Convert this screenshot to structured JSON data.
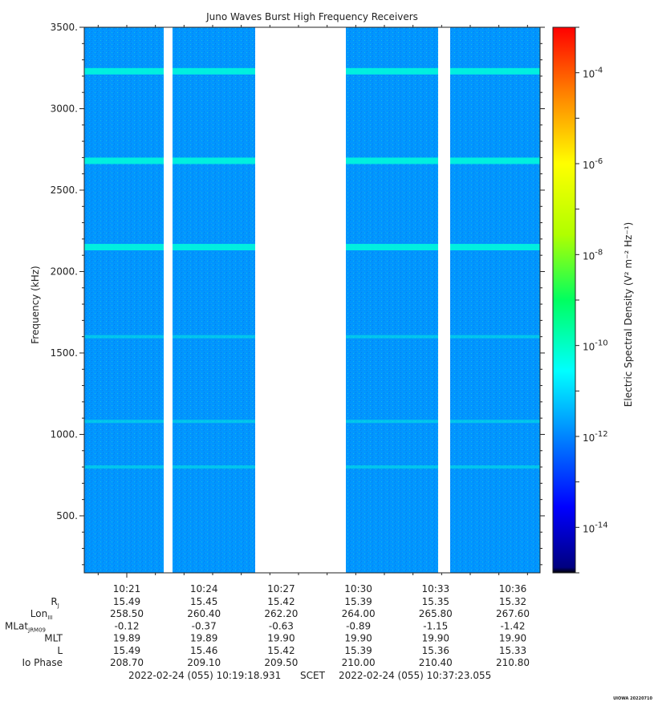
{
  "chart_data": {
    "type": "heatmap",
    "title": "Juno Waves Burst High Frequency Receivers",
    "ylabel": "Frequency (kHz)",
    "ylim": [
      150,
      3500
    ],
    "y_ticks": [
      {
        "value": 500,
        "label": "500."
      },
      {
        "value": 1000,
        "label": "1000."
      },
      {
        "value": 1500,
        "label": "1500."
      },
      {
        "value": 2000,
        "label": "2000."
      },
      {
        "value": 2500,
        "label": "2500."
      },
      {
        "value": 3000,
        "label": "3000."
      },
      {
        "value": 3500,
        "label": "3500."
      }
    ],
    "x_ticks": [
      "10:21",
      "10:24",
      "10:27",
      "10:30",
      "10:33",
      "10:36"
    ],
    "colorbar": {
      "label": "Electric Spectral Density (V² m⁻² Hz⁻¹)",
      "scale": "log",
      "range_exponent": [
        -15,
        -3
      ],
      "tick_labels": [
        {
          "exp": -14,
          "base": "10",
          "sup": "-14"
        },
        {
          "exp": -12,
          "base": "10",
          "sup": "-12"
        },
        {
          "exp": -10,
          "base": "10",
          "sup": "-10"
        },
        {
          "exp": -8,
          "base": "10",
          "sup": "-8"
        },
        {
          "exp": -6,
          "base": "10",
          "sup": "-6"
        },
        {
          "exp": -4,
          "base": "10",
          "sup": "-4"
        }
      ]
    },
    "background_level_exp": -11.8,
    "emission_lines_khz": [
      800,
      1080,
      1600,
      2150,
      2680,
      3230
    ],
    "data_gaps_note": "white vertical gaps = no data",
    "ephemeris": {
      "rows": [
        {
          "label": "R",
          "sub": "J",
          "values": [
            "15.49",
            "15.45",
            "15.42",
            "15.39",
            "15.35",
            "15.32"
          ]
        },
        {
          "label": "Lon",
          "sub": "III",
          "values": [
            "258.50",
            "260.40",
            "262.20",
            "264.00",
            "265.80",
            "267.60"
          ]
        },
        {
          "label": "MLat",
          "sub": "JRM09",
          "values": [
            "-0.12",
            "-0.37",
            "-0.63",
            "-0.89",
            "-1.15",
            "-1.42"
          ]
        },
        {
          "label": "MLT",
          "sub": "",
          "values": [
            "19.89",
            "19.89",
            "19.90",
            "19.90",
            "19.90",
            "19.90"
          ]
        },
        {
          "label": "L",
          "sub": "",
          "values": [
            "15.49",
            "15.46",
            "15.42",
            "15.39",
            "15.36",
            "15.33"
          ]
        },
        {
          "label": "Io Phase",
          "sub": "",
          "values": [
            "208.70",
            "209.10",
            "209.50",
            "210.00",
            "210.40",
            "210.80"
          ]
        }
      ]
    },
    "time_range": {
      "start": "2022-02-24 (055) 10:19:18.931",
      "middle": "SCET",
      "end": "2022-02-24 (055) 10:37:23.055"
    },
    "footer_tag": "UIOWA 20220710"
  }
}
